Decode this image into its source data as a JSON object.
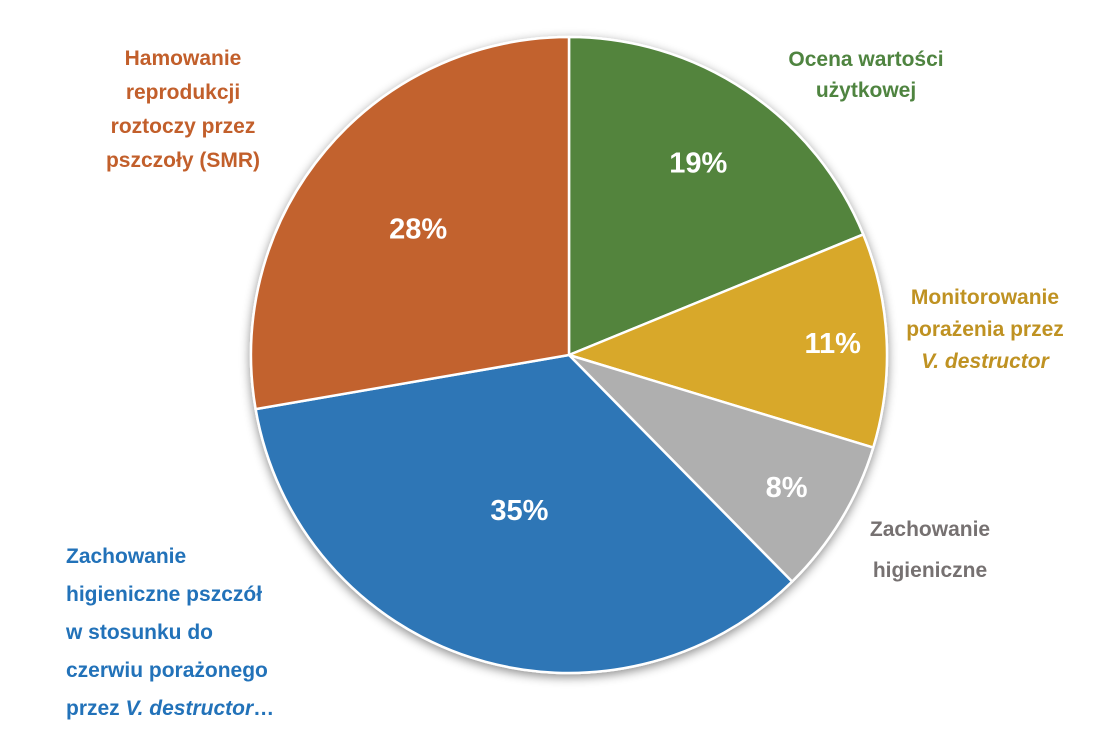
{
  "chart_data": {
    "type": "pie",
    "title": "",
    "start_angle_deg": 0,
    "direction": "clockwise",
    "legend_position": "none",
    "data_labels": "percent inside slices, category names outside",
    "slices": [
      {
        "category": "Ocena wartości użytkowej",
        "value": 19,
        "percent_label": "19%",
        "color": "#52843E"
      },
      {
        "category": "Monitorowanie porażenia przez V. destructor",
        "value": 11,
        "percent_label": "11%",
        "color": "#D8A829"
      },
      {
        "category": "Zachowanie higieniczne",
        "value": 8,
        "percent_label": "8%",
        "color": "#AFAFAF"
      },
      {
        "category": "Zachowanie higieniczne pszczół w stosunku do czerwiu porażonego przez V. destructor…",
        "value": 35,
        "percent_label": "35%",
        "color": "#2E76B6"
      },
      {
        "category": "Hamowanie reprodukcji roztoczy przez pszczoły (SMR)",
        "value": 28,
        "percent_label": "28%",
        "color": "#C2622D"
      }
    ]
  },
  "labels": {
    "smr": {
      "color": "#C25F2B",
      "lines": [
        "Hamowanie",
        "reprodukcji",
        "roztoczy przez",
        "pszczoły (SMR)"
      ]
    },
    "ocena": {
      "color": "#4F8440",
      "lines": [
        "Ocena wartości",
        "użytkowej"
      ]
    },
    "monitorowanie": {
      "color": "#BF9222",
      "line1": "Monitorowanie",
      "line2": "porażenia przez",
      "line3_italic": "V. destructor"
    },
    "zachowanie_gray": {
      "color": "#767171",
      "lines": [
        "Zachowanie",
        "higieniczne"
      ]
    },
    "zachowanie_blue": {
      "color": "#2272B9",
      "line1": "Zachowanie",
      "line2": "higieniczne pszczół",
      "line3": "w stosunku do",
      "line4": "czerwiu porażonego",
      "line5_prefix": "przez ",
      "line5_italic": "V. destructor",
      "line5_suffix": "…"
    }
  }
}
